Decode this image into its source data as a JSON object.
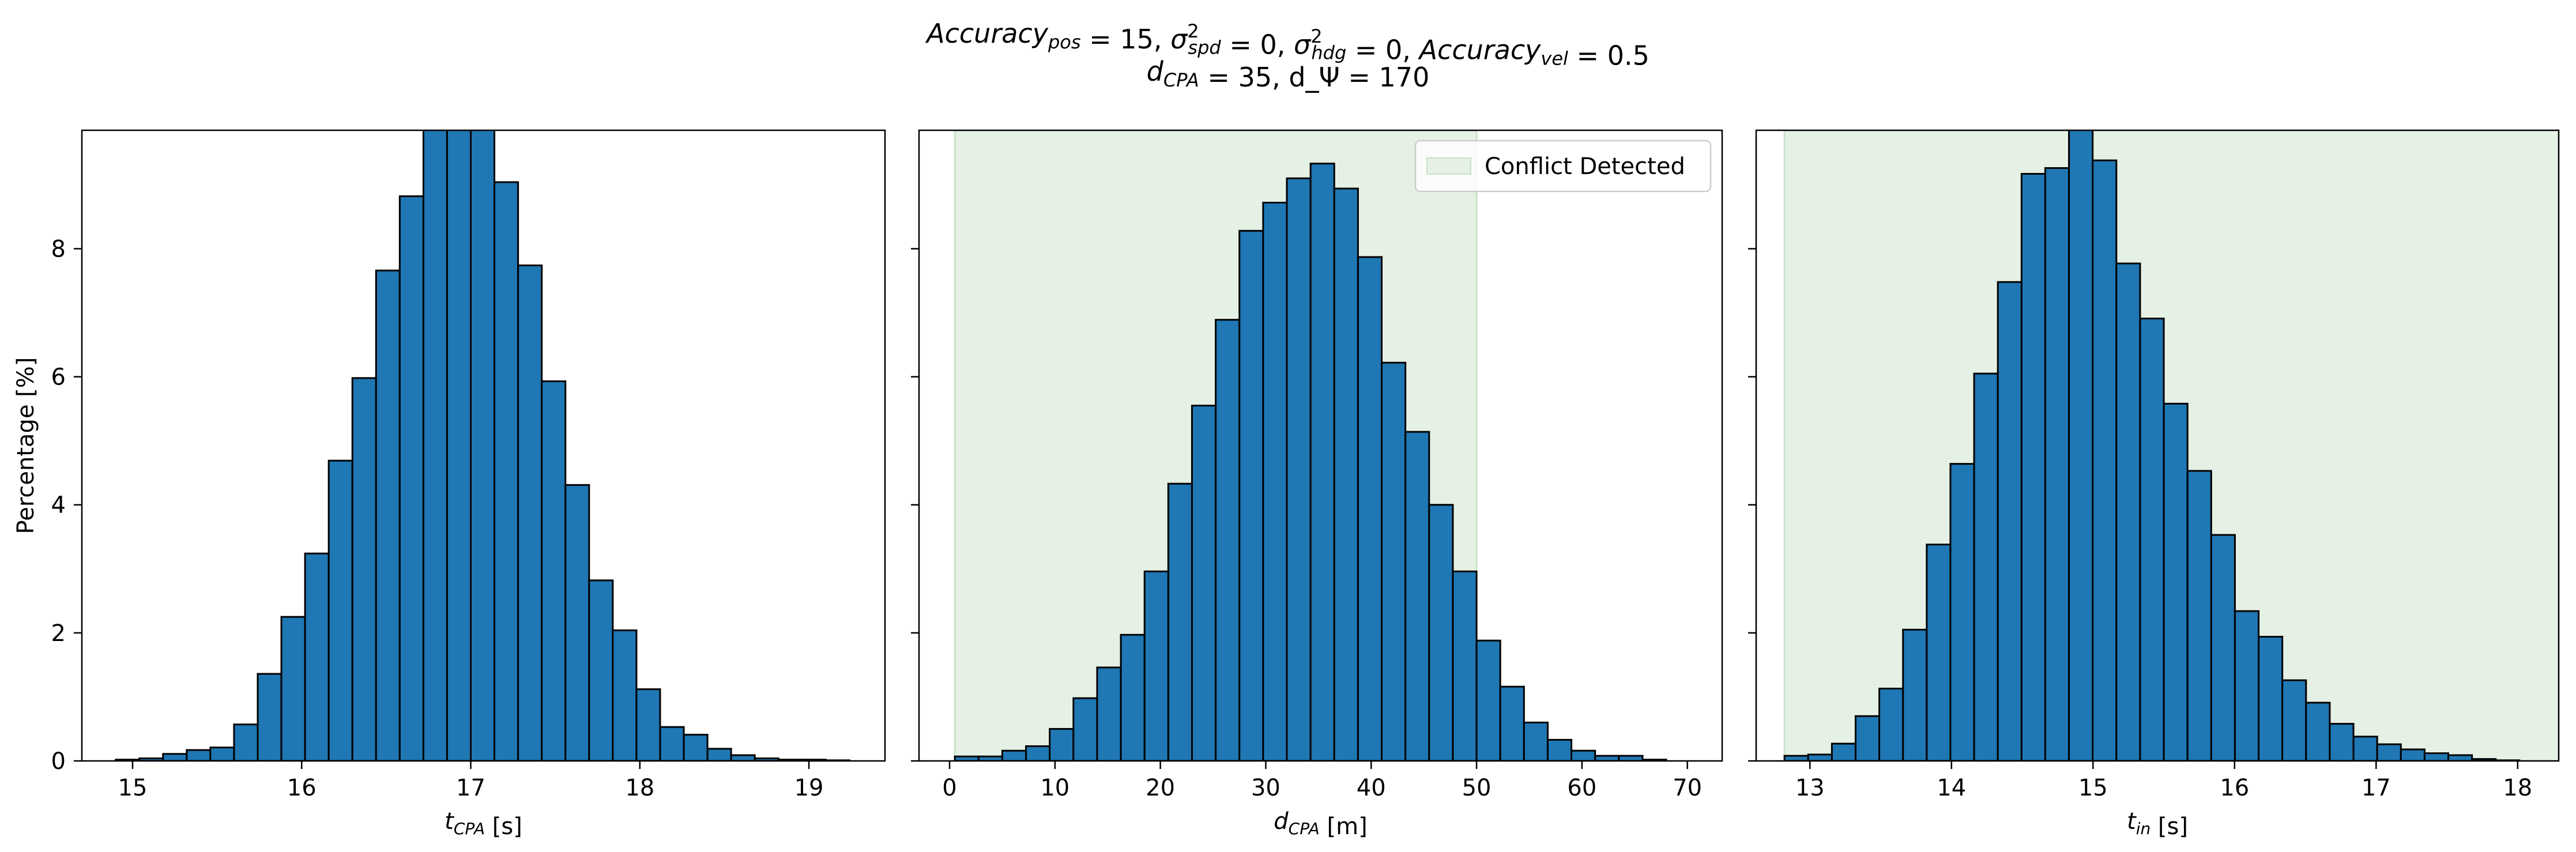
{
  "figure": {
    "title_line1": "Accuracy_pos = 15, σ²_spd = 0, σ²_hdg = 0, Accuracy_vel = 0.5",
    "title_line2": "d_CPA = 35, d_Ψ = 170"
  },
  "colors": {
    "bar_fill": "#1f77b4",
    "bar_edge": "#000000",
    "conflict_region": "#e5f1e5",
    "conflict_edge": "#c9e2c9"
  },
  "chart_data": [
    {
      "type": "bar",
      "subtype": "histogram",
      "xlabel": "t_CPA [s]",
      "ylabel": "Percentage [%]",
      "xlim": [
        14.7,
        19.45
      ],
      "ylim": [
        0,
        9.85
      ],
      "xticks": [
        15,
        16,
        17,
        18,
        19
      ],
      "yticks": [
        0,
        2,
        4,
        6,
        8
      ],
      "bin_edges": [
        14.9,
        15.04,
        15.18,
        15.32,
        15.46,
        15.6,
        15.74,
        15.88,
        16.02,
        16.16,
        16.3,
        16.44,
        16.58,
        16.72,
        16.86,
        17.0,
        17.14,
        17.28,
        17.42,
        17.56,
        17.7,
        17.84,
        17.98,
        18.12,
        18.26,
        18.4,
        18.54,
        18.68,
        18.82,
        18.96,
        19.1,
        19.24
      ],
      "values": [
        0.02,
        0.04,
        0.11,
        0.17,
        0.21,
        0.57,
        1.36,
        2.25,
        3.24,
        4.69,
        5.98,
        7.66,
        8.82,
        9.9,
        10.5,
        10.3,
        9.04,
        7.74,
        5.93,
        4.31,
        2.82,
        2.04,
        1.12,
        0.53,
        0.41,
        0.19,
        0.09,
        0.04,
        0.02,
        0.02,
        0.01
      ],
      "legend": null
    },
    {
      "type": "bar",
      "subtype": "histogram",
      "xlabel": "d_CPA [m]",
      "ylabel": "",
      "xlim": [
        -2.9,
        73.3
      ],
      "ylim": [
        0,
        9.85
      ],
      "xticks": [
        0,
        10,
        20,
        30,
        40,
        50,
        60,
        70
      ],
      "yticks": [
        0,
        2,
        4,
        6,
        8
      ],
      "bin_edges": [
        0.5,
        2.75,
        5.0,
        7.25,
        9.5,
        11.75,
        14.0,
        16.25,
        18.5,
        20.75,
        23.0,
        25.25,
        27.5,
        29.75,
        32.0,
        34.25,
        36.5,
        38.75,
        41.0,
        43.25,
        45.5,
        47.75,
        50.0,
        52.25,
        54.5,
        56.75,
        59.0,
        61.25,
        63.5,
        65.75,
        68.0,
        70.25
      ],
      "values": [
        0.07,
        0.07,
        0.16,
        0.23,
        0.5,
        0.98,
        1.46,
        1.97,
        2.96,
        4.33,
        5.55,
        6.89,
        8.28,
        8.72,
        9.1,
        9.33,
        8.94,
        7.87,
        6.22,
        5.14,
        4.0,
        2.96,
        1.88,
        1.16,
        0.6,
        0.33,
        0.16,
        0.08,
        0.08,
        0.02,
        0.0
      ],
      "conflict_region": [
        0.5,
        50.0
      ],
      "legend": {
        "label": "Conflict Detected",
        "position": "upper-right"
      }
    },
    {
      "type": "bar",
      "subtype": "histogram",
      "xlabel": "t_in [s]",
      "ylabel": "",
      "xlim": [
        12.62,
        18.29
      ],
      "ylim": [
        0,
        9.85
      ],
      "xticks": [
        13,
        14,
        15,
        16,
        17,
        18
      ],
      "yticks": [
        0,
        2,
        4,
        6,
        8
      ],
      "bin_edges": [
        12.82,
        12.9875,
        13.155,
        13.3225,
        13.49,
        13.6575,
        13.825,
        13.9925,
        14.16,
        14.3275,
        14.495,
        14.6625,
        14.83,
        14.9975,
        15.165,
        15.3325,
        15.5,
        15.6675,
        15.835,
        16.0025,
        16.17,
        16.3375,
        16.505,
        16.6725,
        16.84,
        17.0075,
        17.175,
        17.3425,
        17.51,
        17.6775,
        17.845,
        18.0125
      ],
      "values": [
        0.08,
        0.1,
        0.27,
        0.7,
        1.13,
        2.05,
        3.38,
        4.64,
        6.05,
        7.48,
        9.17,
        9.26,
        10.05,
        9.38,
        7.77,
        6.91,
        5.58,
        4.53,
        3.53,
        2.34,
        1.94,
        1.26,
        0.91,
        0.58,
        0.38,
        0.26,
        0.18,
        0.12,
        0.09,
        0.03,
        0.01
      ],
      "conflict_region": [
        12.82,
        18.3
      ],
      "legend": null
    }
  ]
}
